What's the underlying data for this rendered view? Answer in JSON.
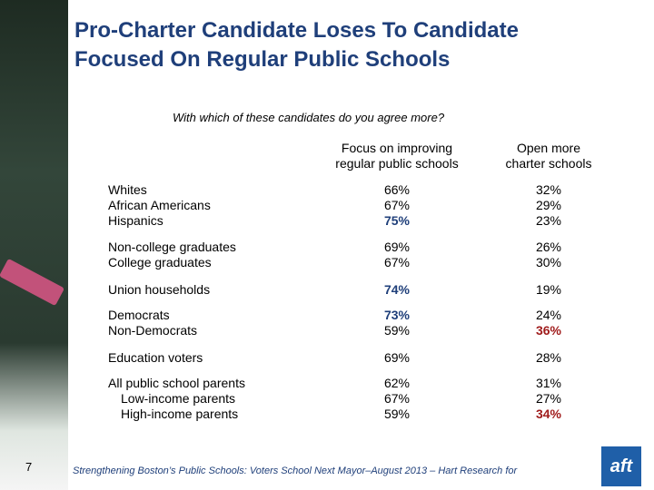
{
  "header": {
    "title_lines": [
      "Pro-Charter Candidate Loses To Candidate",
      "Focused On Regular Public Schools"
    ],
    "subtitle": "With which of these candidates do you agree more?"
  },
  "table": {
    "columns": [
      [
        "Focus on improving",
        "regular public schools"
      ],
      [
        "Open more",
        "charter schools"
      ]
    ],
    "highlight_colors": {
      "focus": "#1f3f7a",
      "charter": "#a01c1c"
    },
    "groups": [
      {
        "labels": [
          "Whites",
          "African Americans",
          "Hispanics"
        ],
        "focus": [
          "66%",
          "67%",
          "75%"
        ],
        "charter": [
          "32%",
          "29%",
          "23%"
        ],
        "highlight": {
          "focus": [
            2
          ],
          "charter": []
        }
      },
      {
        "labels": [
          "Non-college graduates",
          "College graduates"
        ],
        "focus": [
          "69%",
          "67%"
        ],
        "charter": [
          "26%",
          "30%"
        ],
        "highlight": {
          "focus": [],
          "charter": []
        }
      },
      {
        "labels": [
          "Union households"
        ],
        "focus": [
          "74%"
        ],
        "charter": [
          "19%"
        ],
        "highlight": {
          "focus": [
            0
          ],
          "charter": []
        }
      },
      {
        "labels": [
          "Democrats",
          "Non-Democrats"
        ],
        "focus": [
          "73%",
          "59%"
        ],
        "charter": [
          "24%",
          "36%"
        ],
        "highlight": {
          "focus": [
            0
          ],
          "charter": [
            1
          ]
        }
      },
      {
        "labels": [
          "Education voters"
        ],
        "focus": [
          "69%"
        ],
        "charter": [
          "28%"
        ],
        "highlight": {
          "focus": [],
          "charter": []
        }
      },
      {
        "labels": [
          "All public school parents",
          "Low-income parents",
          "High-income parents"
        ],
        "focus": [
          "62%",
          "67%",
          "59%"
        ],
        "charter": [
          "31%",
          "27%",
          "34%"
        ],
        "highlight": {
          "focus": [],
          "charter": [
            2
          ]
        },
        "indented": [
          1,
          2
        ]
      }
    ]
  },
  "footer": {
    "page": "7",
    "source": "Strengthening Boston’s Public Schools:  Voters School Next Mayor–August 2013 – Hart Research for",
    "logo": "aft"
  }
}
